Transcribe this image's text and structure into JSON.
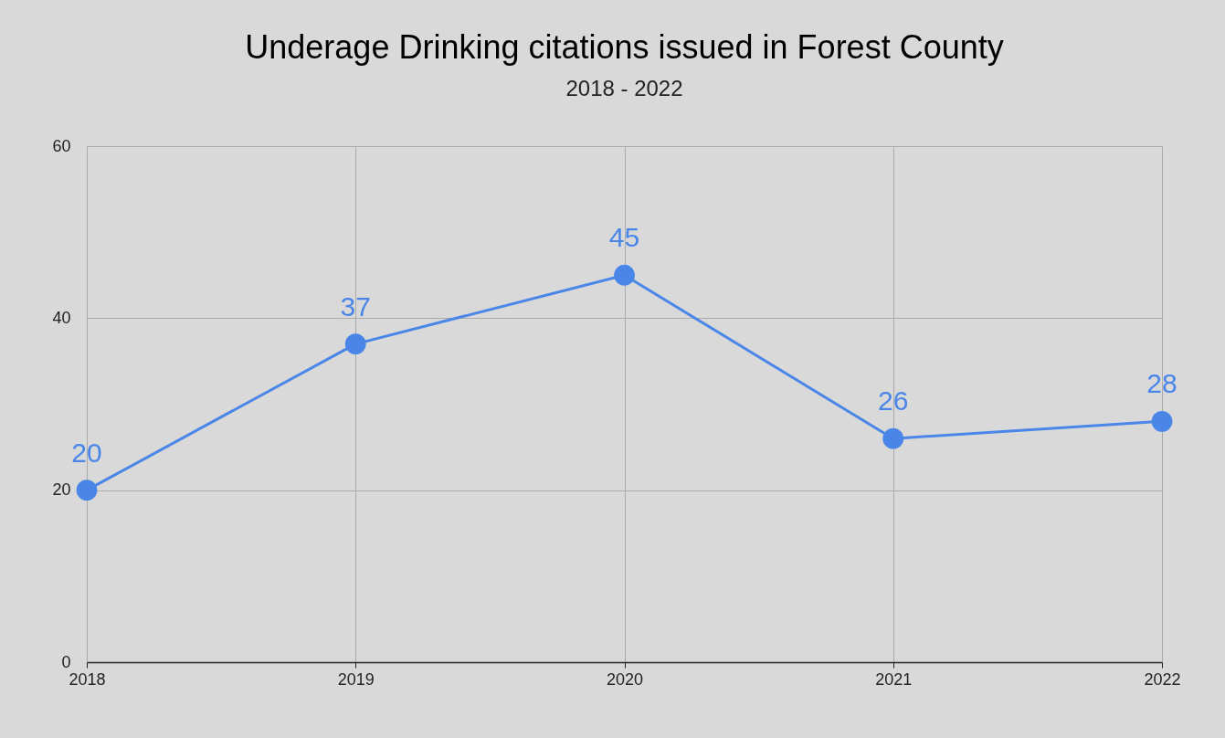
{
  "chart_data": {
    "type": "line",
    "title": "Underage Drinking citations issued in Forest County",
    "subtitle": "2018 - 2022",
    "categories": [
      "2018",
      "2019",
      "2020",
      "2021",
      "2022"
    ],
    "series": [
      {
        "color": "#4a86e8",
        "values": [
          20,
          37,
          45,
          26,
          28
        ]
      }
    ],
    "ylim": [
      0,
      60
    ],
    "yticks": [
      0,
      20,
      40,
      60
    ],
    "grid": true,
    "marker": "circle",
    "line_style": "solid",
    "data_labels": true
  }
}
